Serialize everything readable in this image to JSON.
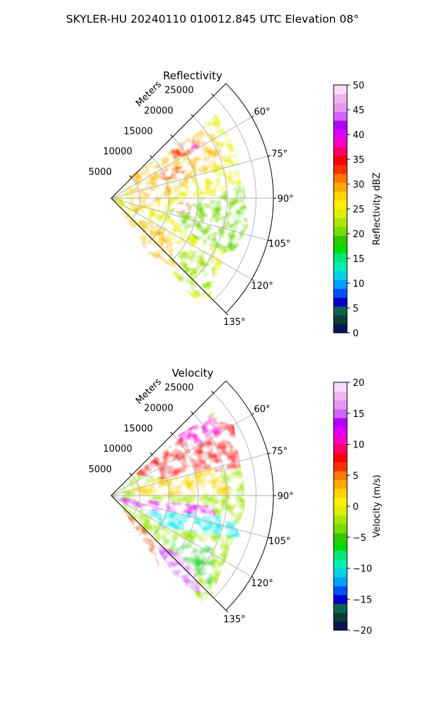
{
  "figure": {
    "suptitle": "SKYLER-HU  20240110  010012.845 UTC Elevation 08°"
  },
  "chart_data": [
    {
      "type": "heatmap",
      "projection": "polar-sector",
      "title": "Reflectivity",
      "range_label": "Meters",
      "range_ticks": [
        5000,
        10000,
        15000,
        20000,
        25000
      ],
      "range_max": 28000,
      "azimuth_ticks": [
        "60°",
        "75°",
        "90°",
        "105°",
        "120°",
        "135°"
      ],
      "azimuth_range": [
        45,
        135
      ],
      "grid": true,
      "colorbar": {
        "label": "Reflectivity dBZ",
        "vmin": 0,
        "vmax": 50,
        "ticks": [
          0,
          5,
          10,
          15,
          20,
          25,
          30,
          35,
          40,
          45,
          50
        ],
        "colors": [
          "#0a1450",
          "#0a3c32",
          "#0a6450",
          "#0000c8",
          "#0050ff",
          "#00a0ff",
          "#00d2e6",
          "#00f0b4",
          "#00e678",
          "#00dc00",
          "#32c800",
          "#78dc00",
          "#aae600",
          "#dcf000",
          "#fff000",
          "#ffd200",
          "#ffa800",
          "#ff7800",
          "#ff3200",
          "#ff0000",
          "#ff0064",
          "#ff00c8",
          "#dc00ff",
          "#b400ff",
          "#d264ff",
          "#e696f0",
          "#f0b4f0",
          "#f8dcf8"
        ]
      }
    },
    {
      "type": "heatmap",
      "projection": "polar-sector",
      "title": "Velocity",
      "range_label": "Meters",
      "range_ticks": [
        5000,
        10000,
        15000,
        20000,
        25000
      ],
      "range_max": 28000,
      "azimuth_ticks": [
        "60°",
        "75°",
        "90°",
        "105°",
        "120°",
        "135°"
      ],
      "azimuth_range": [
        45,
        135
      ],
      "grid": true,
      "colorbar": {
        "label": "Velocity (m/s)",
        "vmin": -20,
        "vmax": 20,
        "ticks": [
          -20,
          -15,
          -10,
          -5,
          0,
          5,
          10,
          15,
          20
        ],
        "colors": [
          "#0a1450",
          "#0a3c32",
          "#0a6450",
          "#0000c8",
          "#0050ff",
          "#00a0ff",
          "#00d2e6",
          "#00f0b4",
          "#00e678",
          "#00dc00",
          "#32c800",
          "#78dc00",
          "#aae600",
          "#dcf000",
          "#fff000",
          "#ffd200",
          "#ffa800",
          "#ff7800",
          "#ff3200",
          "#ff0000",
          "#ff0064",
          "#ff00c8",
          "#dc00ff",
          "#b400ff",
          "#d264ff",
          "#e696f0",
          "#f0b4f0",
          "#f8dcf8"
        ]
      }
    }
  ]
}
